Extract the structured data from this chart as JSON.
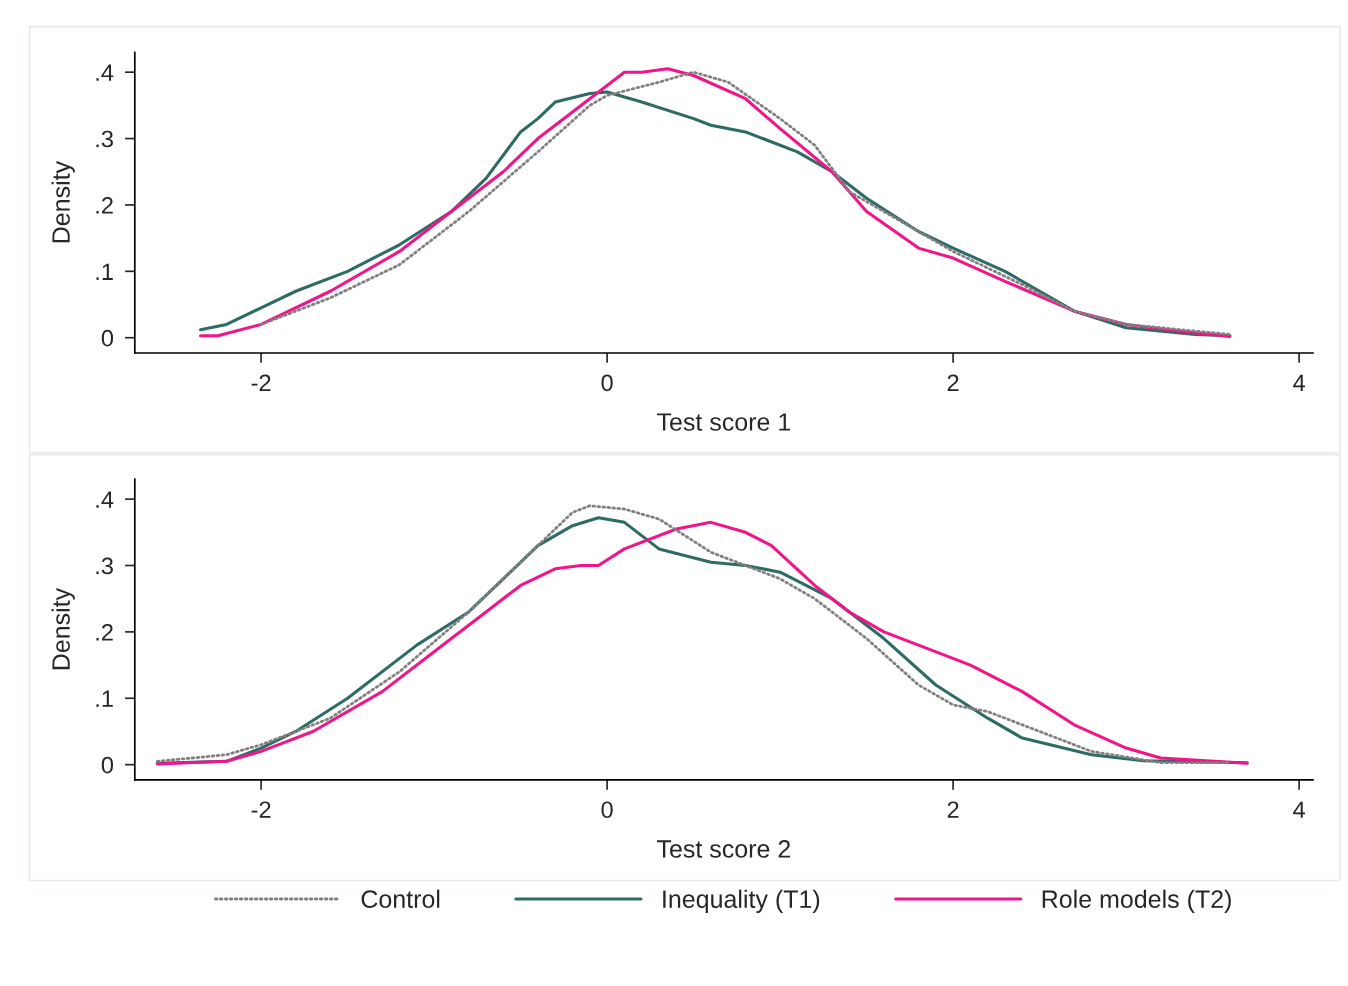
{
  "chart_data": [
    {
      "type": "line",
      "xlabel": "Test score 1",
      "ylabel": "Density",
      "xlim": [
        -2.73,
        4.08
      ],
      "ylim": [
        -0.023,
        0.43
      ],
      "xticks": [
        -2,
        0,
        2,
        4
      ],
      "yticks": [
        {
          "value": 0,
          "label": "0"
        },
        {
          "value": 0.1,
          "label": ".1"
        },
        {
          "value": 0.2,
          "label": ".2"
        },
        {
          "value": 0.3,
          "label": ".3"
        },
        {
          "value": 0.4,
          "label": ".4"
        }
      ],
      "grid": false,
      "series": [
        {
          "color": "#808080",
          "line_style": "dotted",
          "x": [
            -2.0,
            -1.6,
            -1.2,
            -0.8,
            -0.4,
            -0.1,
            0,
            0.3,
            0.5,
            0.7,
            1.0,
            1.2,
            1.4,
            1.8,
            2.0,
            2.4,
            2.7,
            3.0,
            3.6
          ],
          "values": [
            0.02,
            0.06,
            0.11,
            0.19,
            0.28,
            0.35,
            0.365,
            0.385,
            0.4,
            0.385,
            0.33,
            0.29,
            0.22,
            0.16,
            0.13,
            0.08,
            0.04,
            0.02,
            0.005
          ]
        },
        {
          "color": "#2e6b65",
          "line_style": "solid",
          "x": [
            -2.35,
            -2.2,
            -2.0,
            -1.8,
            -1.5,
            -1.2,
            -0.9,
            -0.7,
            -0.5,
            -0.4,
            -0.3,
            -0.1,
            0,
            0.2,
            0.5,
            0.6,
            0.8,
            1.1,
            1.3,
            1.5,
            1.8,
            2.0,
            2.3,
            2.7,
            3.0,
            3.4,
            3.6
          ],
          "values": [
            0.012,
            0.02,
            0.045,
            0.07,
            0.1,
            0.14,
            0.19,
            0.24,
            0.31,
            0.33,
            0.355,
            0.368,
            0.37,
            0.355,
            0.33,
            0.32,
            0.31,
            0.28,
            0.25,
            0.21,
            0.16,
            0.135,
            0.1,
            0.04,
            0.015,
            0.005,
            0.003
          ]
        },
        {
          "color": "#f0168a",
          "line_style": "solid",
          "x": [
            -2.35,
            -2.25,
            -2.0,
            -1.6,
            -1.2,
            -0.9,
            -0.6,
            -0.4,
            -0.2,
            0.1,
            0.2,
            0.35,
            0.5,
            0.8,
            1.0,
            1.3,
            1.5,
            1.8,
            2.0,
            2.3,
            2.7,
            3.0,
            3.3,
            3.6
          ],
          "values": [
            0.003,
            0.003,
            0.02,
            0.07,
            0.13,
            0.19,
            0.25,
            0.3,
            0.34,
            0.4,
            0.4,
            0.405,
            0.395,
            0.36,
            0.315,
            0.25,
            0.19,
            0.135,
            0.12,
            0.085,
            0.04,
            0.02,
            0.01,
            0.002
          ]
        }
      ]
    },
    {
      "type": "line",
      "xlabel": "Test score 2",
      "ylabel": "Density",
      "xlim": [
        -2.73,
        4.08
      ],
      "ylim": [
        -0.023,
        0.43
      ],
      "xticks": [
        -2,
        0,
        2,
        4
      ],
      "yticks": [
        {
          "value": 0,
          "label": "0"
        },
        {
          "value": 0.1,
          "label": ".1"
        },
        {
          "value": 0.2,
          "label": ".2"
        },
        {
          "value": 0.3,
          "label": ".3"
        },
        {
          "value": 0.4,
          "label": ".4"
        }
      ],
      "grid": false,
      "legend": "bottom",
      "series": [
        {
          "name": "Control",
          "color": "#808080",
          "line_style": "dotted",
          "x": [
            -2.6,
            -2.2,
            -2.0,
            -1.6,
            -1.2,
            -0.8,
            -0.4,
            -0.2,
            -0.1,
            0.1,
            0.3,
            0.6,
            0.8,
            1.0,
            1.2,
            1.5,
            1.8,
            2.0,
            2.2,
            2.5,
            2.8,
            3.2,
            3.6
          ],
          "values": [
            0.005,
            0.015,
            0.03,
            0.07,
            0.14,
            0.23,
            0.33,
            0.38,
            0.39,
            0.385,
            0.37,
            0.32,
            0.3,
            0.28,
            0.25,
            0.19,
            0.12,
            0.09,
            0.08,
            0.05,
            0.02,
            0.003,
            0.003
          ]
        },
        {
          "name": "Inequality (T1)",
          "color": "#2e6b65",
          "line_style": "solid",
          "x": [
            -2.6,
            -2.2,
            -2.0,
            -1.8,
            -1.5,
            -1.1,
            -0.8,
            -0.6,
            -0.4,
            -0.2,
            -0.05,
            0.1,
            0.3,
            0.6,
            0.8,
            1.0,
            1.3,
            1.6,
            1.9,
            2.2,
            2.4,
            2.8,
            3.1,
            3.7
          ],
          "values": [
            0.002,
            0.005,
            0.025,
            0.05,
            0.1,
            0.18,
            0.23,
            0.28,
            0.33,
            0.36,
            0.372,
            0.365,
            0.325,
            0.305,
            0.3,
            0.29,
            0.25,
            0.19,
            0.12,
            0.07,
            0.04,
            0.015,
            0.006,
            0.003
          ]
        },
        {
          "name": "Role models (T2)",
          "color": "#f0168a",
          "line_style": "solid",
          "x": [
            -2.6,
            -2.2,
            -2.0,
            -1.7,
            -1.3,
            -1.0,
            -0.7,
            -0.5,
            -0.3,
            -0.15,
            -0.05,
            0.1,
            0.4,
            0.6,
            0.8,
            0.95,
            1.2,
            1.4,
            1.6,
            1.8,
            2.1,
            2.4,
            2.7,
            3.0,
            3.2,
            3.7
          ],
          "values": [
            0.001,
            0.005,
            0.02,
            0.05,
            0.11,
            0.17,
            0.23,
            0.27,
            0.295,
            0.3,
            0.3,
            0.325,
            0.355,
            0.365,
            0.35,
            0.33,
            0.27,
            0.23,
            0.2,
            0.18,
            0.15,
            0.11,
            0.06,
            0.025,
            0.01,
            0.002
          ]
        }
      ]
    }
  ]
}
